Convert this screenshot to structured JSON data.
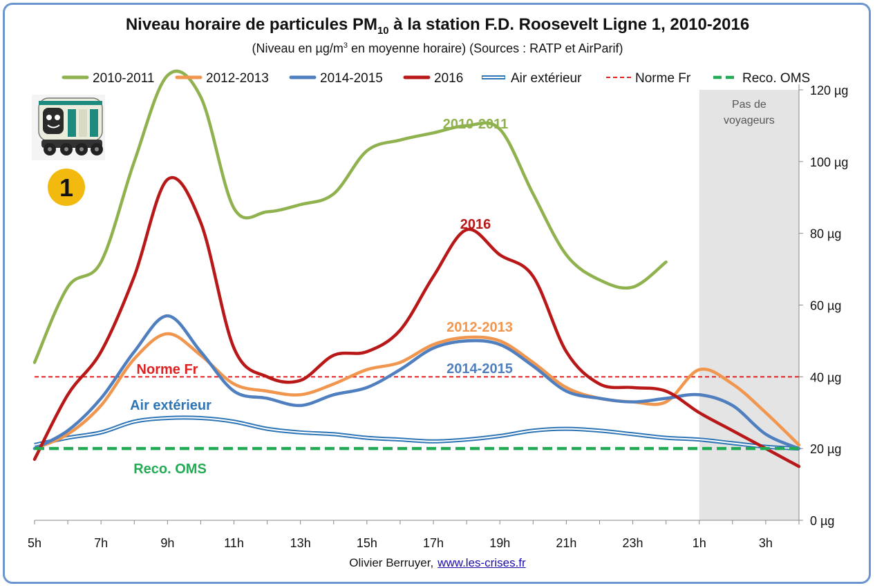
{
  "title": {
    "main": "Niveau horaire de particules PM",
    "sub": "10",
    "rest": " à la station F.D. Roosevelt Ligne 1, 2010-2016"
  },
  "subtitle": {
    "before": "(Niveau en µg/m",
    "sup": "3",
    "after": " en moyenne horaire) (Sources : RATP et AirParif)"
  },
  "credit": {
    "author": "Olivier Berruyer,",
    "link": "www.les-crises.fr"
  },
  "badge": {
    "number": "1",
    "icon": "metro-train-icon"
  },
  "shaded_region": {
    "label_line1": "Pas de",
    "label_line2": "voyageurs"
  },
  "colors": {
    "2010-2011": "#8fb24f",
    "2012-2013": "#f0964e",
    "2014-2015": "#4f7fbf",
    "2016": "#b81818",
    "air": "#2e75b6",
    "norme": "#e02020",
    "oms": "#22aa55",
    "shade": "#e4e4e4",
    "badge": "#f2b90f"
  },
  "chart_data": {
    "type": "line",
    "x": [
      "5h",
      "6h",
      "7h",
      "8h",
      "9h",
      "10h",
      "11h",
      "12h",
      "13h",
      "14h",
      "15h",
      "16h",
      "17h",
      "18h",
      "19h",
      "20h",
      "21h",
      "22h",
      "23h",
      "0h",
      "1h",
      "2h",
      "3h",
      "4h"
    ],
    "x_tick_labels": [
      "5h",
      "7h",
      "9h",
      "11h",
      "13h",
      "15h",
      "17h",
      "19h",
      "21h",
      "23h",
      "1h",
      "3h"
    ],
    "y_tick_labels": [
      "0 µg",
      "20 µg",
      "40 µg",
      "60 µg",
      "80 µg",
      "100 µg",
      "120 µg"
    ],
    "ylim": [
      0,
      120
    ],
    "shaded_x_range": [
      "1h",
      "4h"
    ],
    "series": [
      {
        "name": "2010-2011",
        "label": "2010-2011",
        "style": "solid",
        "values": [
          44,
          65,
          72,
          100,
          124,
          118,
          87,
          86,
          88,
          91,
          103,
          106,
          108,
          110,
          109,
          91,
          74,
          67,
          65,
          72,
          null,
          null,
          null,
          null
        ]
      },
      {
        "name": "2012-2013",
        "label": "2012-2013",
        "style": "solid",
        "values": [
          20,
          24,
          32,
          45,
          52,
          46,
          38,
          36,
          35,
          38,
          42,
          44,
          49,
          51,
          50,
          44,
          37,
          34,
          33,
          33,
          42,
          38,
          30,
          21
        ]
      },
      {
        "name": "2014-2015",
        "label": "2014-2015",
        "style": "solid",
        "values": [
          20,
          25,
          34,
          47,
          57,
          47,
          36,
          34,
          32,
          35,
          37,
          42,
          48,
          50,
          49,
          43,
          36,
          34,
          33,
          34,
          35,
          32,
          24,
          20
        ]
      },
      {
        "name": "2016",
        "label": "2016",
        "style": "solid",
        "values": [
          17,
          35,
          47,
          68,
          95,
          83,
          48,
          40,
          39,
          46,
          47,
          53,
          68,
          81,
          74,
          68,
          47,
          38,
          37,
          36,
          30,
          25,
          20,
          15
        ]
      },
      {
        "name": "Air extérieur",
        "label": "Air extérieur",
        "style": "double",
        "values": [
          21,
          23,
          24.5,
          27.5,
          28.5,
          28.5,
          27.5,
          25.5,
          24.5,
          24,
          23,
          22.5,
          22,
          22.5,
          23.5,
          25,
          25.5,
          25,
          24,
          23,
          22.5,
          21.5,
          20.5,
          20
        ]
      },
      {
        "name": "Norme Fr",
        "label": "Norme Fr",
        "style": "dashed",
        "constant": 40
      },
      {
        "name": "Reco. OMS",
        "label": "Reco. OMS",
        "style": "dashed-bold",
        "constant": 20
      }
    ]
  }
}
